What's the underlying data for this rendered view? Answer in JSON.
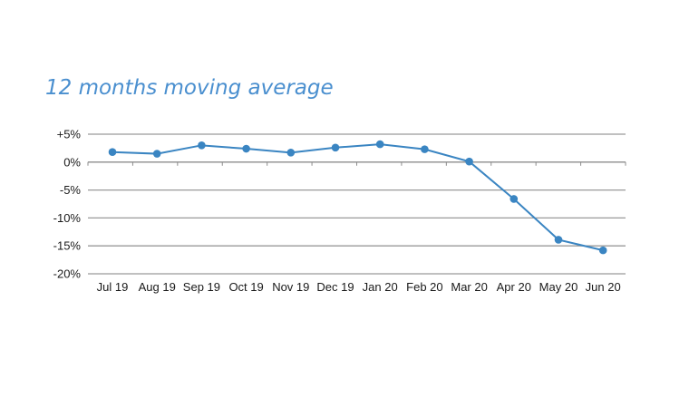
{
  "chart_data": {
    "type": "line",
    "title": "12 months moving average",
    "xlabel": "",
    "ylabel": "",
    "categories": [
      "Jul 19",
      "Aug 19",
      "Sep 19",
      "Oct 19",
      "Nov 19",
      "Dec 19",
      "Jan 20",
      "Feb 20",
      "Mar 20",
      "Apr 20",
      "May 20",
      "Jun 20"
    ],
    "series": [
      {
        "values": [
          1.8,
          1.5,
          3.0,
          2.4,
          1.7,
          2.6,
          3.2,
          2.3,
          0.1,
          -6.6,
          -13.9,
          -15.8
        ],
        "color": "#3a85c2"
      }
    ],
    "yticks": [
      {
        "value": 5,
        "label": "+5%"
      },
      {
        "value": 0,
        "label": "0%"
      },
      {
        "value": -5,
        "label": "-5%"
      },
      {
        "value": -10,
        "label": "-10%"
      },
      {
        "value": -15,
        "label": "-15%"
      },
      {
        "value": -20,
        "label": "-20%"
      }
    ],
    "ylim": [
      -20,
      5
    ],
    "grid": true,
    "legend": "none",
    "gridline_color": "#9a9a9a",
    "axis_color": "#8c8c8c"
  }
}
